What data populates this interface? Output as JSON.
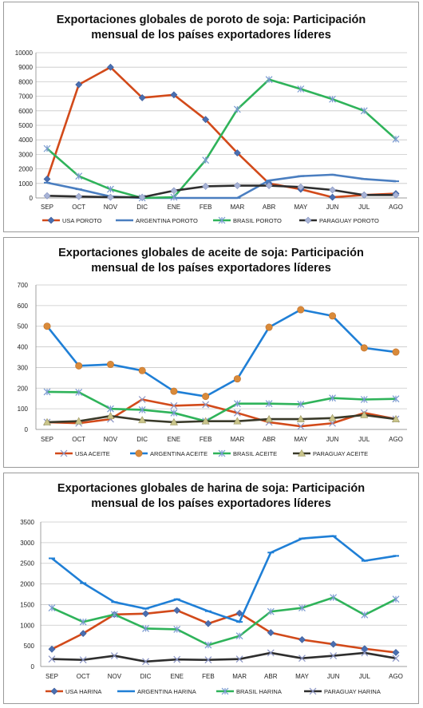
{
  "chart_data": [
    {
      "type": "line",
      "title_line1": "Exportaciones globales de poroto de soja: Participación",
      "title_line2": "mensual de los países exportadores líderes",
      "categories": [
        "SEP",
        "OCT",
        "NOV",
        "DIC",
        "ENE",
        "FEB",
        "MAR",
        "ABR",
        "MAY",
        "JUN",
        "JUL",
        "AGO"
      ],
      "ylim": [
        0,
        10000
      ],
      "yticks": [
        0,
        1000,
        2000,
        3000,
        4000,
        5000,
        6000,
        7000,
        8000,
        9000,
        10000
      ],
      "grid": true,
      "legend_position": "bottom",
      "series": [
        {
          "name": "USA POROTO",
          "color": "#d24a1a",
          "marker": "diamond",
          "values": [
            1300,
            7800,
            9000,
            6900,
            7100,
            5400,
            3100,
            1000,
            600,
            50,
            200,
            300
          ]
        },
        {
          "name": "ARGENTINA POROTO",
          "color": "#4a7ec0",
          "marker": "dash",
          "values": [
            1050,
            600,
            100,
            0,
            0,
            0,
            0,
            1200,
            1500,
            1600,
            1300,
            1150
          ]
        },
        {
          "name": "BRASIL POROTO",
          "color": "#2fb35a",
          "marker": "star",
          "values": [
            3400,
            1500,
            600,
            0,
            50,
            2600,
            6100,
            8150,
            7500,
            6800,
            6000,
            4050
          ]
        },
        {
          "name": "PARAGUAY POROTO",
          "color": "#2e2e2e",
          "marker": "diamond-light",
          "values": [
            150,
            100,
            50,
            50,
            500,
            800,
            850,
            850,
            750,
            550,
            200,
            200
          ]
        }
      ]
    },
    {
      "type": "line",
      "title_line1": "Exportaciones globales de aceite de soja: Participación",
      "title_line2": "mensual de los países exportadores líderes",
      "categories": [
        "SEP",
        "OCT",
        "NOV",
        "DIC",
        "ENE",
        "FEB",
        "MAR",
        "ABR",
        "MAY",
        "JUN",
        "JUL",
        "AGO"
      ],
      "ylim": [
        0,
        700
      ],
      "yticks": [
        0,
        100,
        200,
        300,
        400,
        500,
        600,
        700
      ],
      "grid": true,
      "legend_position": "bottom",
      "series": [
        {
          "name": "USA ACEITE",
          "color": "#d24a1a",
          "marker": "x",
          "values": [
            35,
            30,
            50,
            145,
            115,
            120,
            80,
            35,
            15,
            30,
            80,
            50
          ]
        },
        {
          "name": "ARGENTINA ACEITE",
          "color": "#1f7fd6",
          "marker": "circle",
          "values": [
            500,
            308,
            315,
            285,
            185,
            160,
            245,
            495,
            580,
            550,
            395,
            375
          ]
        },
        {
          "name": "BRASIL ACEITE",
          "color": "#2fb35a",
          "marker": "star",
          "values": [
            182,
            180,
            100,
            95,
            80,
            40,
            125,
            125,
            122,
            152,
            145,
            148
          ]
        },
        {
          "name": "PARAGUAY ACEITE",
          "color": "#3a3a2a",
          "marker": "triangle",
          "values": [
            35,
            40,
            65,
            45,
            35,
            40,
            40,
            50,
            50,
            55,
            70,
            50
          ]
        }
      ]
    },
    {
      "type": "line",
      "title_line1": "Exportaciones globales de harina de soja: Participación",
      "title_line2": "mensual de los países exportadores líderes",
      "categories": [
        "SEP",
        "OCT",
        "NOV",
        "DIC",
        "ENE",
        "FEB",
        "MAR",
        "ABR",
        "MAY",
        "JUN",
        "JUL",
        "AGO"
      ],
      "ylim": [
        0,
        3500
      ],
      "yticks": [
        0,
        500,
        1000,
        1500,
        2000,
        2500,
        3000,
        3500
      ],
      "grid": true,
      "legend_position": "bottom",
      "series": [
        {
          "name": "USA HARINA",
          "color": "#d24a1a",
          "marker": "diamond",
          "values": [
            420,
            800,
            1260,
            1280,
            1360,
            1040,
            1290,
            820,
            650,
            540,
            430,
            340
          ]
        },
        {
          "name": "ARGENTINA HARINA",
          "color": "#1f7fd6",
          "marker": "dash",
          "values": [
            2620,
            2020,
            1560,
            1400,
            1630,
            1340,
            1080,
            2760,
            3100,
            3160,
            2560,
            2680
          ]
        },
        {
          "name": "BRASIL HARINA",
          "color": "#2fb35a",
          "marker": "star",
          "values": [
            1420,
            1080,
            1260,
            920,
            900,
            520,
            740,
            1330,
            1420,
            1670,
            1250,
            1630
          ]
        },
        {
          "name": "PARAGUAY HARINA",
          "color": "#2e2e2e",
          "marker": "x",
          "values": [
            180,
            160,
            260,
            120,
            170,
            160,
            180,
            330,
            200,
            260,
            330,
            200
          ]
        }
      ]
    }
  ]
}
